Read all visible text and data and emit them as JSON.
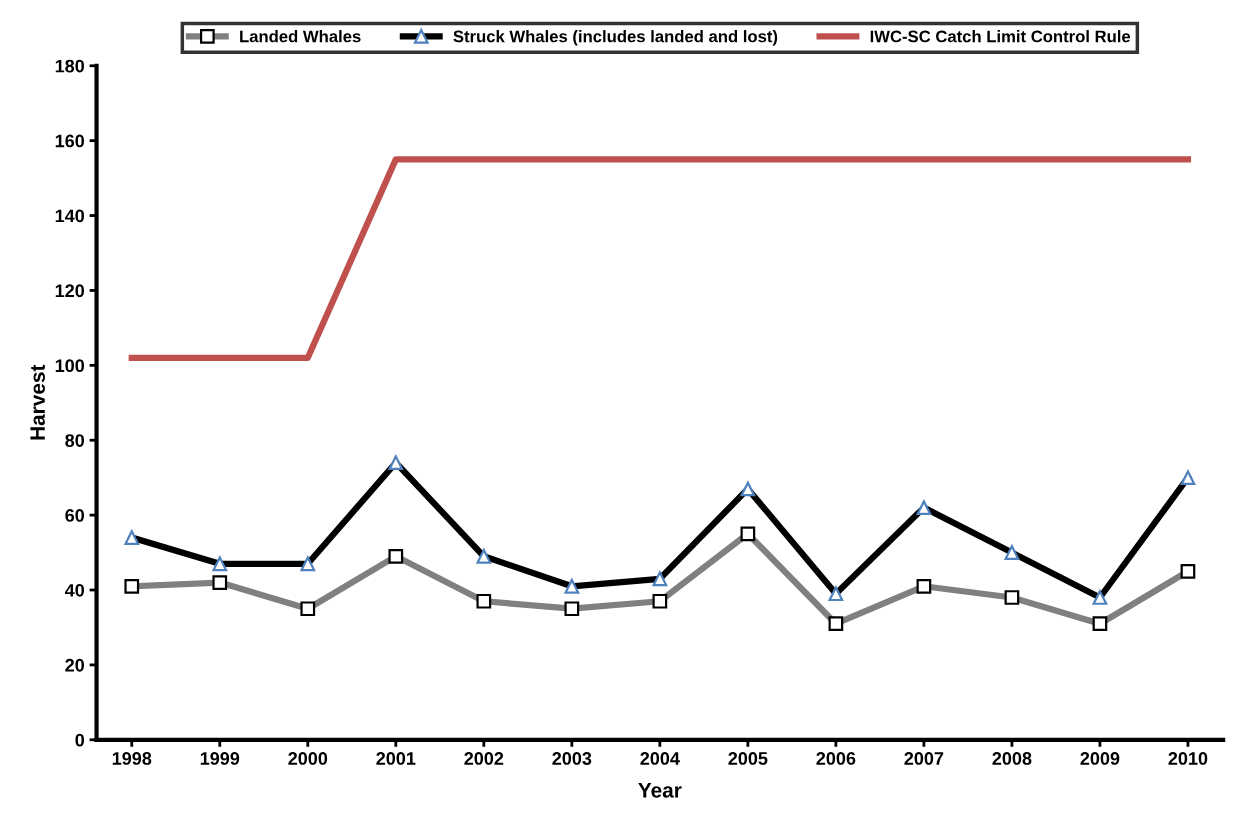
{
  "chart_data": {
    "type": "line",
    "xlabel": "Year",
    "ylabel": "Harvest",
    "categories": [
      "1998",
      "1999",
      "2000",
      "2001",
      "2002",
      "2003",
      "2004",
      "2005",
      "2006",
      "2007",
      "2008",
      "2009",
      "2010"
    ],
    "series": [
      {
        "name": "Landed Whales",
        "color": "#808080",
        "marker": "square",
        "values": [
          41,
          42,
          35,
          49,
          37,
          35,
          37,
          55,
          31,
          41,
          38,
          31,
          45
        ]
      },
      {
        "name": "Struck Whales (includes landed and lost)",
        "color": "#000000",
        "marker": "triangle",
        "values": [
          54,
          47,
          47,
          74,
          49,
          41,
          43,
          67,
          39,
          62,
          50,
          38,
          70
        ]
      },
      {
        "name": "IWC-SC Catch Limit Control Rule",
        "color": "#c0504d",
        "marker": "none",
        "values": [
          102,
          102,
          102,
          155,
          155,
          155,
          155,
          155,
          155,
          155,
          155,
          155,
          155
        ]
      }
    ],
    "ylim": [
      0,
      180
    ],
    "yticks": [
      0,
      20,
      40,
      60,
      80,
      100,
      120,
      140,
      160,
      180
    ],
    "grid": false,
    "legend": "top",
    "line_style": "solid"
  }
}
